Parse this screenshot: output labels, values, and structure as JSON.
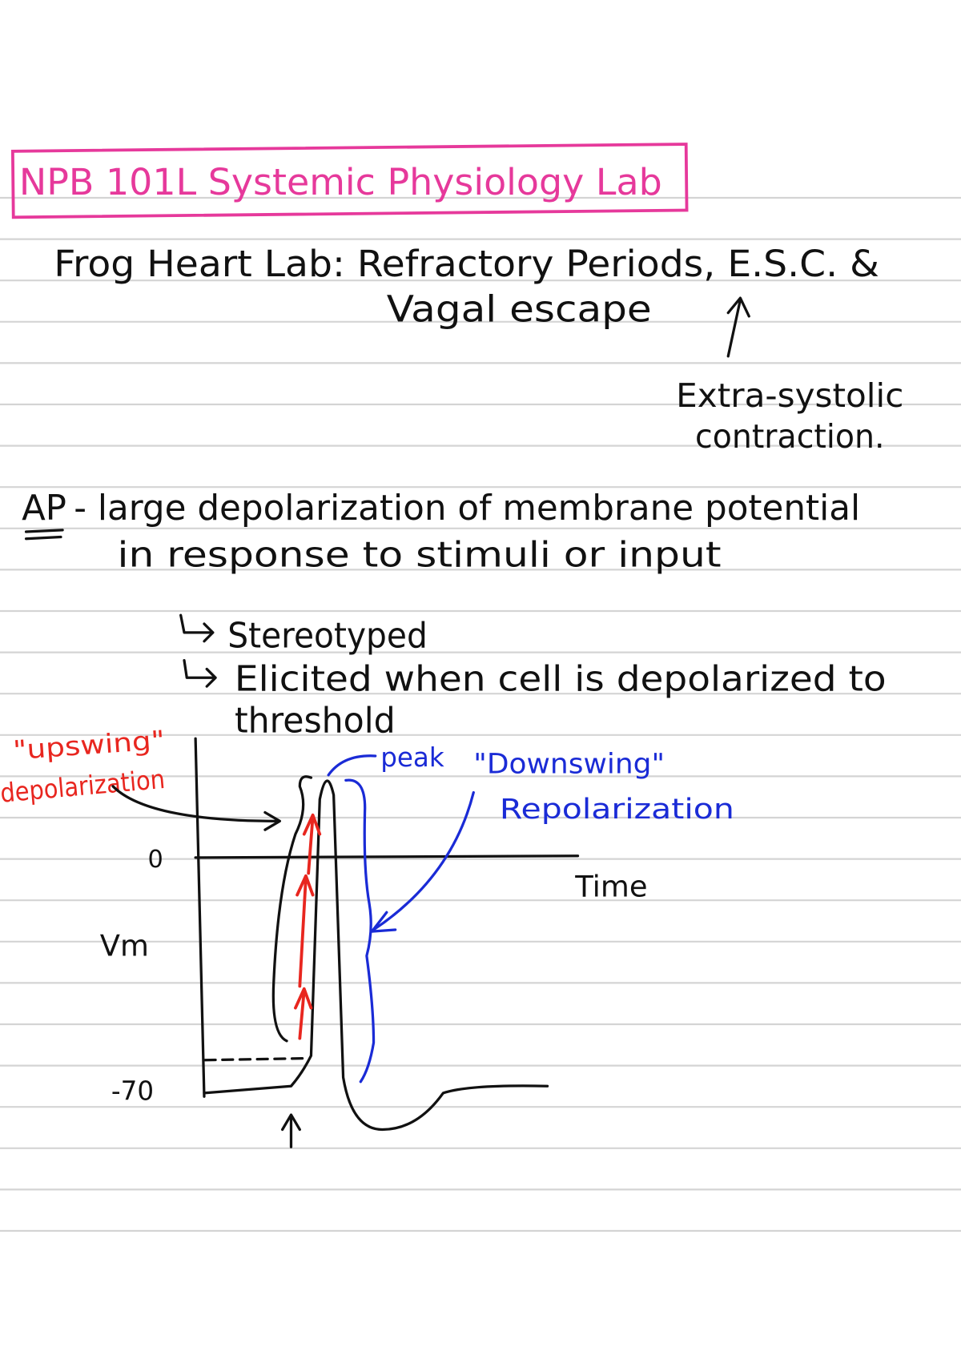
{
  "header": {
    "title": "NPB 101L Systemic Physiology Lab"
  },
  "heading": {
    "line1": "Frog Heart Lab: Refractory Periods, E.S.C. &",
    "line2": "Vagal escape"
  },
  "annotation": {
    "line1": "Extra-systolic",
    "line2": "contraction."
  },
  "definition": {
    "term": "AP",
    "line1": "- large depolarization of membrane potential",
    "line2": "in response to stimuli or input"
  },
  "bullets": [
    {
      "text": "Stereotyped"
    },
    {
      "text": "Elicited when cell is depolarized to",
      "continuation": "threshold"
    }
  ],
  "diagram": {
    "y_label": "Vm",
    "x_label": "Time",
    "zero_label": "0",
    "rest_label": "-70",
    "upswing": {
      "line1": "\"upswing\"",
      "line2": "depolarization"
    },
    "peak": "peak",
    "downswing": {
      "line1": "\"Downswing\"",
      "line2": "Repolarization"
    }
  }
}
